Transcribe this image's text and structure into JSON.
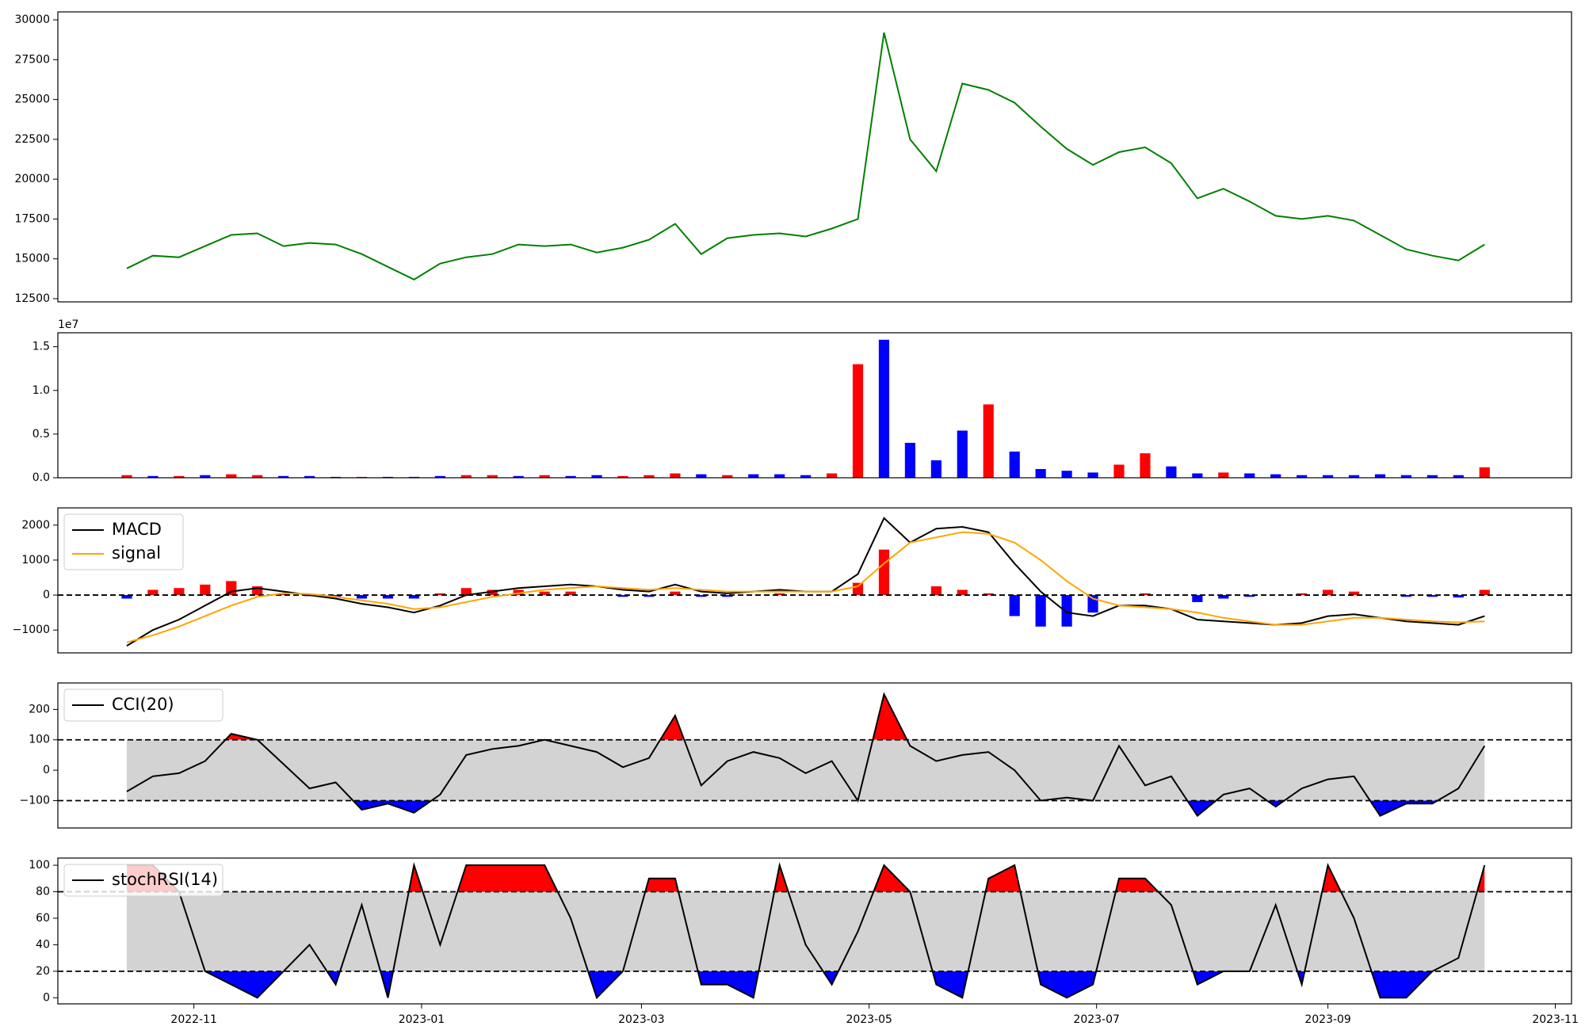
{
  "chart_data": [
    {
      "type": "line",
      "color": "green",
      "values": [
        14400,
        15200,
        15100,
        15800,
        16500,
        16600,
        15800,
        16000,
        15900,
        15300,
        14500,
        13700,
        14700,
        15100,
        15300,
        15900,
        15800,
        15900,
        15400,
        15700,
        16200,
        17200,
        15300,
        16300,
        16500,
        16600,
        16400,
        16900,
        17500,
        29200,
        22500,
        20500,
        26000,
        25600,
        24800,
        23300,
        21900,
        20900,
        21700,
        22000,
        21000,
        18800,
        19400,
        18600,
        17700,
        17500,
        17700,
        17400,
        16500,
        15600,
        15200,
        14900,
        15900
      ],
      "ylim": [
        12300,
        30500
      ],
      "yticks": [
        12500,
        15000,
        17500,
        20000,
        22500,
        25000,
        27500,
        30000
      ]
    },
    {
      "type": "bar",
      "offset_label": "1e7",
      "values": [
        0.03,
        0.02,
        0.02,
        0.03,
        0.04,
        0.03,
        0.02,
        0.02,
        0.01,
        0.01,
        0.01,
        0.01,
        0.02,
        0.03,
        0.03,
        0.02,
        0.03,
        0.02,
        0.03,
        0.02,
        0.03,
        0.05,
        0.04,
        0.03,
        0.04,
        0.04,
        0.03,
        0.05,
        1.3,
        1.58,
        0.4,
        0.2,
        0.54,
        0.84,
        0.3,
        0.1,
        0.08,
        0.06,
        0.15,
        0.28,
        0.13,
        0.05,
        0.06,
        0.05,
        0.04,
        0.03,
        0.03,
        0.03,
        0.04,
        0.03,
        0.03,
        0.03,
        0.12
      ],
      "colors": [
        "red",
        "blue",
        "red",
        "blue",
        "red",
        "red",
        "blue",
        "blue",
        "blue",
        "red",
        "blue",
        "blue",
        "blue",
        "red",
        "red",
        "blue",
        "red",
        "blue",
        "blue",
        "red",
        "red",
        "red",
        "blue",
        "red",
        "blue",
        "blue",
        "blue",
        "red",
        "red",
        "blue",
        "blue",
        "blue",
        "blue",
        "red",
        "blue",
        "blue",
        "blue",
        "blue",
        "red",
        "red",
        "blue",
        "blue",
        "red",
        "blue",
        "blue",
        "blue",
        "blue",
        "blue",
        "blue",
        "blue",
        "blue",
        "blue",
        "red"
      ],
      "ylim": [
        0,
        1.66
      ],
      "yticks": [
        {
          "value": 0,
          "label": "0.0"
        },
        {
          "value": 0.5,
          "label": "0.5"
        },
        {
          "value": 1,
          "label": "1.0"
        },
        {
          "value": 1.5,
          "label": "1.5"
        }
      ]
    },
    {
      "type": "combo",
      "series": [
        {
          "name": "MACD",
          "color": "black",
          "values": [
            -1450,
            -1000,
            -700,
            -300,
            100,
            200,
            100,
            0,
            -100,
            -250,
            -350,
            -500,
            -300,
            0,
            100,
            200,
            250,
            300,
            250,
            150,
            100,
            300,
            100,
            50,
            100,
            150,
            100,
            100,
            600,
            2200,
            1500,
            1900,
            1950,
            1800,
            900,
            100,
            -500,
            -600,
            -300,
            -300,
            -400,
            -700,
            -750,
            -800,
            -850,
            -800,
            -600,
            -550,
            -650,
            -750,
            -800,
            -850,
            -600
          ]
        },
        {
          "name": "signal",
          "color": "orange",
          "values": [
            -1350,
            -1150,
            -900,
            -600,
            -300,
            -50,
            50,
            30,
            -50,
            -150,
            -250,
            -400,
            -350,
            -200,
            -50,
            50,
            150,
            200,
            250,
            200,
            150,
            200,
            150,
            100,
            100,
            100,
            100,
            100,
            250,
            900,
            1500,
            1650,
            1800,
            1750,
            1500,
            1000,
            400,
            -100,
            -300,
            -350,
            -400,
            -500,
            -650,
            -750,
            -850,
            -850,
            -750,
            -650,
            -650,
            -700,
            -750,
            -780,
            -750
          ]
        }
      ],
      "bars": {
        "values": [
          -100,
          150,
          200,
          300,
          400,
          250,
          50,
          -30,
          -50,
          -100,
          -100,
          -100,
          50,
          200,
          150,
          150,
          100,
          100,
          0,
          -50,
          -50,
          100,
          -50,
          -50,
          0,
          50,
          0,
          0,
          350,
          1300,
          0,
          250,
          150,
          50,
          -600,
          -900,
          -900,
          -500,
          0,
          50,
          0,
          -200,
          -100,
          -50,
          0,
          50,
          150,
          100,
          0,
          -50,
          -50,
          -70,
          150
        ],
        "colors": [
          "blue",
          "red",
          "red",
          "red",
          "red",
          "red",
          "red",
          "blue",
          "blue",
          "blue",
          "blue",
          "blue",
          "red",
          "red",
          "red",
          "red",
          "red",
          "red",
          "red",
          "blue",
          "blue",
          "red",
          "blue",
          "blue",
          "red",
          "red",
          "red",
          "red",
          "red",
          "red",
          "red",
          "red",
          "red",
          "red",
          "blue",
          "blue",
          "blue",
          "blue",
          "red",
          "red",
          "red",
          "blue",
          "blue",
          "blue",
          "red",
          "red",
          "red",
          "red",
          "red",
          "blue",
          "blue",
          "blue",
          "red"
        ]
      },
      "hlines": [
        0
      ],
      "ylim": [
        -1652,
        2493
      ],
      "yticks": [
        {
          "value": -1000,
          "label": "−1000"
        },
        0,
        1000,
        2000
      ]
    },
    {
      "type": "band",
      "series": [
        {
          "name": "CCI(20)",
          "color": "black",
          "values": [
            -70,
            -20,
            -10,
            30,
            120,
            100,
            20,
            -60,
            -40,
            -130,
            -110,
            -140,
            -80,
            50,
            70,
            80,
            100,
            80,
            60,
            10,
            40,
            180,
            -50,
            30,
            60,
            40,
            -10,
            30,
            -100,
            250,
            80,
            30,
            50,
            60,
            0,
            -100,
            -90,
            -100,
            80,
            -50,
            -20,
            -150,
            -80,
            -60,
            -120,
            -60,
            -30,
            -20,
            -150,
            -110,
            -110,
            -60,
            80
          ]
        }
      ],
      "thresholds": [
        100,
        -100
      ],
      "band_color": "lightgray",
      "upper_color": "red",
      "lower_color": "blue",
      "ylim": [
        -190,
        287
      ],
      "yticks": [
        {
          "value": -100,
          "label": "−100"
        },
        0,
        100,
        200
      ]
    },
    {
      "type": "band",
      "series": [
        {
          "name": "stochRSI(14)",
          "color": "black",
          "values": [
            100,
            100,
            80,
            20,
            10,
            0,
            20,
            40,
            10,
            70,
            0,
            100,
            40,
            100,
            100,
            100,
            100,
            60,
            0,
            20,
            90,
            90,
            10,
            10,
            0,
            100,
            40,
            10,
            50,
            100,
            80,
            10,
            0,
            90,
            100,
            10,
            0,
            10,
            90,
            90,
            70,
            10,
            20,
            20,
            70,
            10,
            100,
            60,
            0,
            0,
            20,
            30,
            100
          ]
        }
      ],
      "thresholds": [
        80,
        20
      ],
      "band_color": "lightgray",
      "upper_color": "red",
      "lower_color": "blue",
      "ylim": [
        -4.6,
        105.4
      ],
      "yticks": [
        0,
        20,
        40,
        60,
        80,
        100
      ],
      "xlim": [
        -2.64,
        55.33
      ],
      "xticks": [
        {
          "value": 2.57,
          "label": "2022-11"
        },
        {
          "value": 11.29,
          "label": "2023-01"
        },
        {
          "value": 19.71,
          "label": "2023-03"
        },
        {
          "value": 28.43,
          "label": "2023-05"
        },
        {
          "value": 37.14,
          "label": "2023-07"
        },
        {
          "value": 46,
          "label": "2023-09"
        },
        {
          "value": 54.71,
          "label": "2023-11"
        }
      ]
    }
  ]
}
